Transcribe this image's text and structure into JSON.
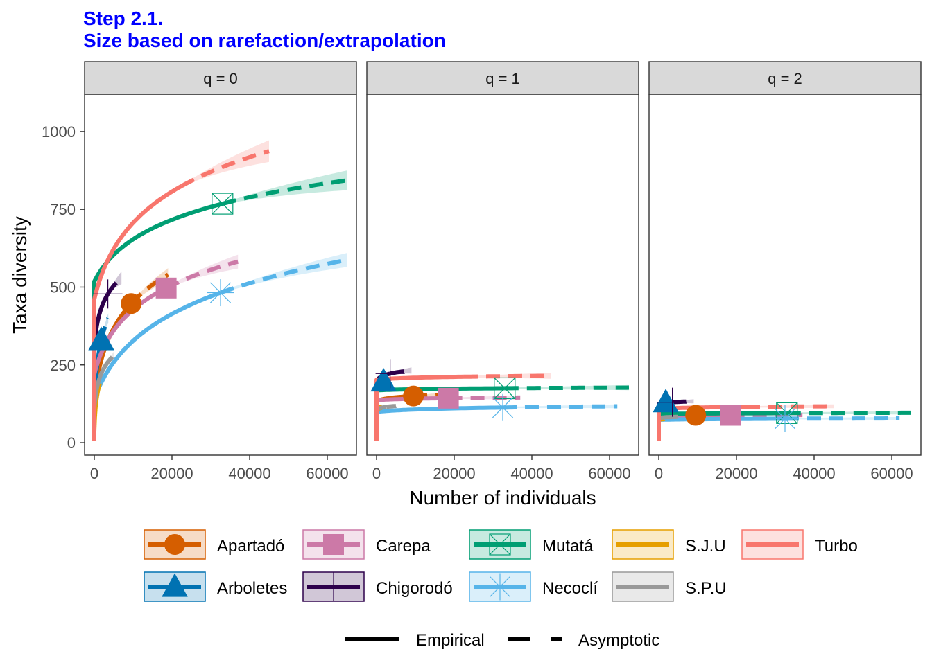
{
  "title": {
    "line1": "Step 2.1.",
    "line2": "Size based on rarefaction/extrapolation"
  },
  "chart_data": {
    "type": "line",
    "xlabel": "Number of individuals",
    "ylabel": "Taxa diversity",
    "xlim": [
      -2500,
      67500
    ],
    "ylim": [
      -40,
      1120
    ],
    "xticks": [
      0,
      20000,
      40000,
      60000
    ],
    "xtick_labels": [
      "0",
      "20000",
      "40000",
      "60000"
    ],
    "yticks": [
      0,
      250,
      500,
      750,
      1000
    ],
    "ytick_labels": [
      "0",
      "250",
      "500",
      "750",
      "1000"
    ],
    "grid": false,
    "legend_position": "bottom",
    "line_type_legend": [
      {
        "label": "Empirical",
        "linetype": "solid"
      },
      {
        "label": "Asymptotic",
        "linetype": "dashed"
      }
    ],
    "panels": [
      {
        "label": "q = 0",
        "series": [
          {
            "name": "Apartadó",
            "n_obs": 9500,
            "s_obs": 447,
            "max_n": 19000,
            "s_end": 540
          },
          {
            "name": "Arboletes",
            "n_obs": 1800,
            "s_obs": 330,
            "max_n": 3600,
            "s_end": 400
          },
          {
            "name": "Carepa",
            "n_obs": 18500,
            "s_obs": 497,
            "max_n": 37000,
            "s_end": 582
          },
          {
            "name": "Chigorodó",
            "n_obs": 3500,
            "s_obs": 478,
            "max_n": 7000,
            "s_end": 530
          },
          {
            "name": "Mutatá",
            "n_obs": 33000,
            "s_obs": 768,
            "max_n": 65000,
            "s_end": 843
          },
          {
            "name": "Necoclí",
            "n_obs": 32500,
            "s_obs": 482,
            "max_n": 65000,
            "s_end": 587
          },
          {
            "name": "S.J.U",
            "n_obs": 700,
            "s_obs": 150,
            "max_n": 1400,
            "s_end": 190
          },
          {
            "name": "S.P.U",
            "n_obs": 2500,
            "s_obs": 240,
            "max_n": 5000,
            "s_end": 280
          },
          {
            "name": "Turbo",
            "n_obs": 22500,
            "s_obs": 825,
            "max_n": 45000,
            "s_end": 937
          }
        ]
      },
      {
        "label": "q = 1",
        "series": [
          {
            "name": "Apartadó",
            "n_obs": 9500,
            "s_obs": 150,
            "max_n": 19000,
            "s_end": 155
          },
          {
            "name": "Arboletes",
            "n_obs": 1800,
            "s_obs": 197,
            "max_n": 3600,
            "s_end": 205
          },
          {
            "name": "Carepa",
            "n_obs": 18500,
            "s_obs": 143,
            "max_n": 37000,
            "s_end": 145
          },
          {
            "name": "Chigorodó",
            "n_obs": 3500,
            "s_obs": 222,
            "max_n": 9000,
            "s_end": 232
          },
          {
            "name": "Mutatá",
            "n_obs": 33000,
            "s_obs": 175,
            "max_n": 65000,
            "s_end": 177
          },
          {
            "name": "Necoclí",
            "n_obs": 32500,
            "s_obs": 113,
            "max_n": 62000,
            "s_end": 117
          },
          {
            "name": "S.J.U",
            "n_obs": 700,
            "s_obs": 110,
            "max_n": 1400,
            "s_end": 115
          },
          {
            "name": "S.P.U",
            "n_obs": 2500,
            "s_obs": 115,
            "max_n": 5000,
            "s_end": 118
          },
          {
            "name": "Turbo",
            "n_obs": 22500,
            "s_obs": 212,
            "max_n": 45000,
            "s_end": 215
          }
        ]
      },
      {
        "label": "q = 2",
        "series": [
          {
            "name": "Apartadó",
            "n_obs": 9500,
            "s_obs": 88,
            "max_n": 19000,
            "s_end": 89
          },
          {
            "name": "Arboletes",
            "n_obs": 1800,
            "s_obs": 130,
            "max_n": 3600,
            "s_end": 132
          },
          {
            "name": "Carepa",
            "n_obs": 18500,
            "s_obs": 88,
            "max_n": 37000,
            "s_end": 89
          },
          {
            "name": "Chigorodó",
            "n_obs": 3500,
            "s_obs": 130,
            "max_n": 9000,
            "s_end": 133
          },
          {
            "name": "Mutatá",
            "n_obs": 33000,
            "s_obs": 95,
            "max_n": 65000,
            "s_end": 96
          },
          {
            "name": "Necoclí",
            "n_obs": 32500,
            "s_obs": 77,
            "max_n": 62000,
            "s_end": 78
          },
          {
            "name": "S.J.U",
            "n_obs": 700,
            "s_obs": 75,
            "max_n": 1400,
            "s_end": 76
          },
          {
            "name": "S.P.U",
            "n_obs": 2500,
            "s_obs": 82,
            "max_n": 5000,
            "s_end": 83
          },
          {
            "name": "Turbo",
            "n_obs": 22500,
            "s_obs": 115,
            "max_n": 45000,
            "s_end": 117
          }
        ]
      }
    ],
    "legend": [
      {
        "name": "Apartadó",
        "color": "#D55E00",
        "shape": "circle"
      },
      {
        "name": "Carepa",
        "color": "#CC79A7",
        "shape": "square"
      },
      {
        "name": "Mutatá",
        "color": "#009E73",
        "shape": "square-cross"
      },
      {
        "name": "S.J.U",
        "color": "#E69F00",
        "shape": "none"
      },
      {
        "name": "Turbo",
        "color": "#F8766D",
        "shape": "none"
      },
      {
        "name": "Arboletes",
        "color": "#0072B2",
        "shape": "triangle"
      },
      {
        "name": "Chigorodó",
        "color": "#2D004B",
        "shape": "plus"
      },
      {
        "name": "Necoclí",
        "color": "#56B4E9",
        "shape": "asterisk"
      },
      {
        "name": "S.P.U",
        "color": "#999999",
        "shape": "none"
      }
    ]
  }
}
